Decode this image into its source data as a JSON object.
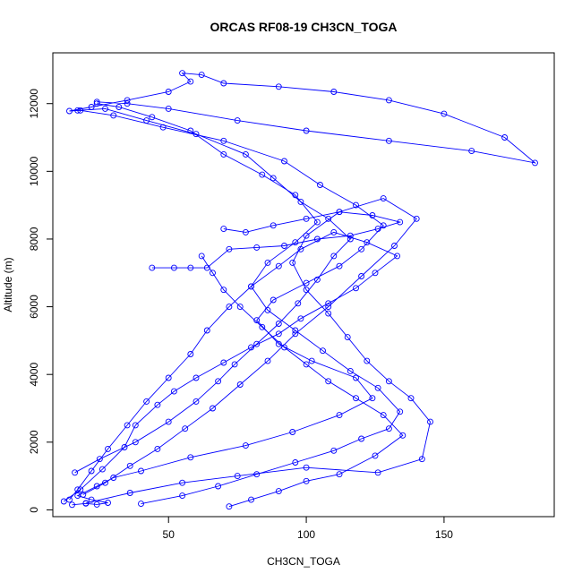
{
  "chart_data": {
    "type": "line",
    "title": "ORCAS RF08-19 CH3CN_TOGA",
    "xlabel": "CH3CN_TOGA",
    "ylabel": "Altitude (m)",
    "xlim": [
      8,
      190
    ],
    "ylim": [
      -200,
      13500
    ],
    "xticks": [
      50,
      100,
      150
    ],
    "yticks": [
      0,
      2000,
      4000,
      6000,
      8000,
      10000,
      12000
    ],
    "grid": false,
    "legend": "none",
    "series_color": "#0000ff",
    "marker": "open-circle",
    "series": [
      {
        "values": [
          [
            15,
            150
          ],
          [
            20,
            190
          ],
          [
            24,
            160
          ],
          [
            28,
            210
          ],
          [
            22,
            300
          ],
          [
            17,
            420
          ],
          [
            24,
            700
          ],
          [
            30,
            950
          ],
          [
            40,
            1150
          ],
          [
            58,
            1550
          ],
          [
            78,
            1900
          ],
          [
            95,
            2300
          ],
          [
            112,
            2800
          ],
          [
            124,
            3300
          ],
          [
            118,
            3900
          ],
          [
            102,
            4400
          ],
          [
            90,
            4900
          ],
          [
            82,
            5600
          ],
          [
            88,
            6200
          ],
          [
            100,
            6700
          ],
          [
            112,
            7200
          ],
          [
            120,
            7700
          ],
          [
            128,
            8400
          ],
          [
            118,
            9000
          ],
          [
            105,
            9600
          ],
          [
            92,
            10300
          ],
          [
            70,
            10900
          ],
          [
            48,
            11300
          ],
          [
            30,
            11650
          ],
          [
            18,
            11800
          ],
          [
            14,
            11780
          ],
          [
            22,
            11900
          ],
          [
            35,
            12100
          ],
          [
            50,
            12350
          ],
          [
            58,
            12650
          ],
          [
            55,
            12900
          ],
          [
            62,
            12850
          ],
          [
            70,
            12600
          ],
          [
            90,
            12500
          ],
          [
            110,
            12350
          ],
          [
            130,
            12100
          ],
          [
            150,
            11700
          ],
          [
            172,
            11000
          ],
          [
            183,
            10250
          ],
          [
            160,
            10600
          ],
          [
            130,
            10900
          ],
          [
            100,
            11200
          ],
          [
            75,
            11500
          ],
          [
            50,
            11850
          ],
          [
            35,
            12000
          ],
          [
            24,
            12050
          ]
        ]
      },
      {
        "values": [
          [
            12,
            250
          ],
          [
            18,
            600
          ],
          [
            26,
            1200
          ],
          [
            34,
            1850
          ],
          [
            38,
            2500
          ],
          [
            46,
            3100
          ],
          [
            52,
            3500
          ],
          [
            60,
            3900
          ],
          [
            70,
            4350
          ],
          [
            80,
            4800
          ],
          [
            90,
            5200
          ],
          [
            98,
            5650
          ],
          [
            108,
            6100
          ],
          [
            118,
            6550
          ],
          [
            125,
            7000
          ],
          [
            133,
            7500
          ],
          [
            122,
            7900
          ],
          [
            110,
            8200
          ],
          [
            98,
            7700
          ],
          [
            90,
            7200
          ],
          [
            80,
            6600
          ],
          [
            72,
            6000
          ],
          [
            64,
            5300
          ],
          [
            58,
            4600
          ],
          [
            50,
            3900
          ],
          [
            42,
            3200
          ],
          [
            35,
            2500
          ],
          [
            28,
            1800
          ],
          [
            22,
            1150
          ],
          [
            17,
            600
          ],
          [
            14,
            300
          ]
        ]
      },
      {
        "values": [
          [
            20,
            200
          ],
          [
            36,
            500
          ],
          [
            55,
            800
          ],
          [
            75,
            1000
          ],
          [
            100,
            1250
          ],
          [
            126,
            1100
          ],
          [
            142,
            1500
          ],
          [
            145,
            2600
          ],
          [
            138,
            3300
          ],
          [
            130,
            3800
          ],
          [
            122,
            4400
          ],
          [
            115,
            5100
          ],
          [
            108,
            5800
          ],
          [
            100,
            6500
          ],
          [
            95,
            7300
          ],
          [
            100,
            8100
          ],
          [
            112,
            8800
          ],
          [
            128,
            9200
          ],
          [
            140,
            8600
          ],
          [
            132,
            7800
          ],
          [
            120,
            6900
          ],
          [
            108,
            6000
          ],
          [
            96,
            5200
          ],
          [
            86,
            4400
          ],
          [
            76,
            3700
          ],
          [
            66,
            3000
          ],
          [
            56,
            2400
          ],
          [
            46,
            1800
          ],
          [
            36,
            1300
          ],
          [
            27,
            800
          ],
          [
            19,
            450
          ]
        ]
      },
      {
        "values": [
          [
            16,
            1100
          ],
          [
            25,
            1500
          ],
          [
            38,
            2000
          ],
          [
            50,
            2600
          ],
          [
            60,
            3200
          ],
          [
            68,
            3800
          ],
          [
            74,
            4300
          ],
          [
            82,
            4900
          ],
          [
            90,
            5500
          ],
          [
            97,
            6100
          ],
          [
            104,
            6800
          ],
          [
            110,
            7500
          ],
          [
            116,
            8000
          ],
          [
            108,
            8600
          ],
          [
            98,
            9100
          ],
          [
            88,
            9800
          ],
          [
            78,
            10500
          ],
          [
            60,
            11100
          ],
          [
            42,
            11500
          ],
          [
            27,
            11850
          ],
          [
            17,
            11800
          ]
        ]
      },
      {
        "values": [
          [
            40,
            180
          ],
          [
            55,
            420
          ],
          [
            68,
            700
          ],
          [
            82,
            1050
          ],
          [
            96,
            1400
          ],
          [
            110,
            1750
          ],
          [
            120,
            2100
          ],
          [
            130,
            2400
          ],
          [
            134,
            2900
          ],
          [
            126,
            3600
          ],
          [
            116,
            4100
          ],
          [
            106,
            4700
          ],
          [
            96,
            5300
          ],
          [
            86,
            5900
          ],
          [
            80,
            6600
          ],
          [
            86,
            7300
          ],
          [
            96,
            7900
          ],
          [
            104,
            8500
          ],
          [
            96,
            9300
          ],
          [
            84,
            9900
          ],
          [
            70,
            10500
          ],
          [
            58,
            11200
          ],
          [
            44,
            11600
          ],
          [
            32,
            11900
          ],
          [
            24,
            12000
          ]
        ]
      },
      {
        "values": [
          [
            44,
            7150
          ],
          [
            52,
            7150
          ],
          [
            58,
            7150
          ],
          [
            64,
            7150
          ],
          [
            72,
            7700
          ],
          [
            82,
            7750
          ],
          [
            92,
            7800
          ],
          [
            104,
            8000
          ],
          [
            116,
            8100
          ],
          [
            126,
            8300
          ],
          [
            134,
            8500
          ],
          [
            124,
            8700
          ],
          [
            112,
            8800
          ],
          [
            100,
            8600
          ],
          [
            88,
            8400
          ],
          [
            78,
            8200
          ],
          [
            70,
            8300
          ]
        ]
      },
      {
        "values": [
          [
            72,
            100
          ],
          [
            80,
            300
          ],
          [
            90,
            550
          ],
          [
            100,
            850
          ],
          [
            112,
            1050
          ],
          [
            125,
            1600
          ],
          [
            135,
            2200
          ],
          [
            128,
            2800
          ],
          [
            118,
            3300
          ],
          [
            108,
            3800
          ],
          [
            100,
            4300
          ],
          [
            92,
            4800
          ],
          [
            84,
            5400
          ],
          [
            76,
            6000
          ],
          [
            70,
            6500
          ],
          [
            66,
            7000
          ],
          [
            62,
            7500
          ]
        ]
      }
    ]
  }
}
